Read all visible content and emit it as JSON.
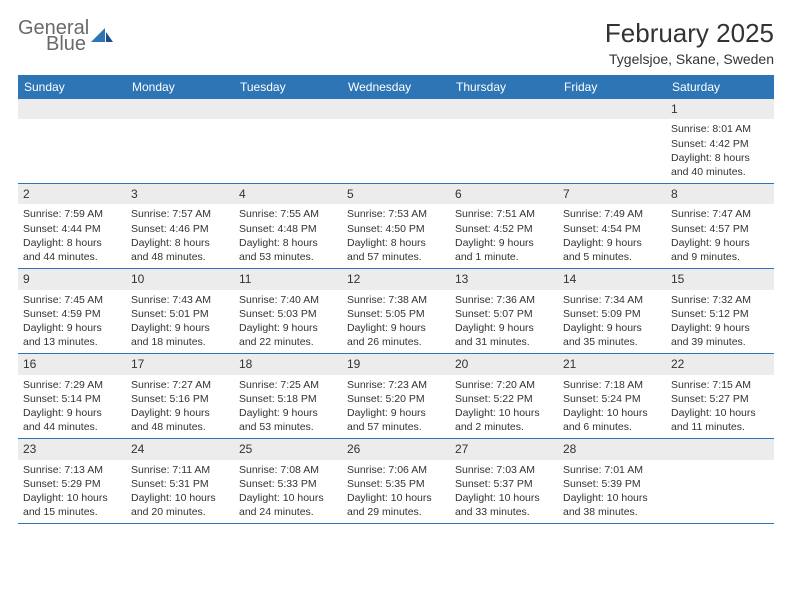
{
  "logo": {
    "line1": "General",
    "line2": "Blue"
  },
  "header": {
    "month_title": "February 2025",
    "location": "Tygelsjoe, Skane, Sweden"
  },
  "styling": {
    "header_bg": "#2e75b6",
    "daynum_bg": "#ececec",
    "page_bg": "#ffffff",
    "text_color": "#333333",
    "weekday_text": "#ffffff",
    "week_border": "#2e75b6",
    "logo_gray": "#6a6a6a",
    "logo_blue": "#2e75b6",
    "month_fontsize": 26,
    "location_fontsize": 14,
    "weekday_fontsize": 12,
    "daynum_fontsize": 12,
    "body_fontsize": 10.5
  },
  "weekdays": [
    "Sunday",
    "Monday",
    "Tuesday",
    "Wednesday",
    "Thursday",
    "Friday",
    "Saturday"
  ],
  "weeks": [
    [
      {
        "empty": true
      },
      {
        "empty": true
      },
      {
        "empty": true
      },
      {
        "empty": true
      },
      {
        "empty": true
      },
      {
        "empty": true
      },
      {
        "num": "1",
        "sunrise": "Sunrise: 8:01 AM",
        "sunset": "Sunset: 4:42 PM",
        "daylight": "Daylight: 8 hours and 40 minutes."
      }
    ],
    [
      {
        "num": "2",
        "sunrise": "Sunrise: 7:59 AM",
        "sunset": "Sunset: 4:44 PM",
        "daylight": "Daylight: 8 hours and 44 minutes."
      },
      {
        "num": "3",
        "sunrise": "Sunrise: 7:57 AM",
        "sunset": "Sunset: 4:46 PM",
        "daylight": "Daylight: 8 hours and 48 minutes."
      },
      {
        "num": "4",
        "sunrise": "Sunrise: 7:55 AM",
        "sunset": "Sunset: 4:48 PM",
        "daylight": "Daylight: 8 hours and 53 minutes."
      },
      {
        "num": "5",
        "sunrise": "Sunrise: 7:53 AM",
        "sunset": "Sunset: 4:50 PM",
        "daylight": "Daylight: 8 hours and 57 minutes."
      },
      {
        "num": "6",
        "sunrise": "Sunrise: 7:51 AM",
        "sunset": "Sunset: 4:52 PM",
        "daylight": "Daylight: 9 hours and 1 minute."
      },
      {
        "num": "7",
        "sunrise": "Sunrise: 7:49 AM",
        "sunset": "Sunset: 4:54 PM",
        "daylight": "Daylight: 9 hours and 5 minutes."
      },
      {
        "num": "8",
        "sunrise": "Sunrise: 7:47 AM",
        "sunset": "Sunset: 4:57 PM",
        "daylight": "Daylight: 9 hours and 9 minutes."
      }
    ],
    [
      {
        "num": "9",
        "sunrise": "Sunrise: 7:45 AM",
        "sunset": "Sunset: 4:59 PM",
        "daylight": "Daylight: 9 hours and 13 minutes."
      },
      {
        "num": "10",
        "sunrise": "Sunrise: 7:43 AM",
        "sunset": "Sunset: 5:01 PM",
        "daylight": "Daylight: 9 hours and 18 minutes."
      },
      {
        "num": "11",
        "sunrise": "Sunrise: 7:40 AM",
        "sunset": "Sunset: 5:03 PM",
        "daylight": "Daylight: 9 hours and 22 minutes."
      },
      {
        "num": "12",
        "sunrise": "Sunrise: 7:38 AM",
        "sunset": "Sunset: 5:05 PM",
        "daylight": "Daylight: 9 hours and 26 minutes."
      },
      {
        "num": "13",
        "sunrise": "Sunrise: 7:36 AM",
        "sunset": "Sunset: 5:07 PM",
        "daylight": "Daylight: 9 hours and 31 minutes."
      },
      {
        "num": "14",
        "sunrise": "Sunrise: 7:34 AM",
        "sunset": "Sunset: 5:09 PM",
        "daylight": "Daylight: 9 hours and 35 minutes."
      },
      {
        "num": "15",
        "sunrise": "Sunrise: 7:32 AM",
        "sunset": "Sunset: 5:12 PM",
        "daylight": "Daylight: 9 hours and 39 minutes."
      }
    ],
    [
      {
        "num": "16",
        "sunrise": "Sunrise: 7:29 AM",
        "sunset": "Sunset: 5:14 PM",
        "daylight": "Daylight: 9 hours and 44 minutes."
      },
      {
        "num": "17",
        "sunrise": "Sunrise: 7:27 AM",
        "sunset": "Sunset: 5:16 PM",
        "daylight": "Daylight: 9 hours and 48 minutes."
      },
      {
        "num": "18",
        "sunrise": "Sunrise: 7:25 AM",
        "sunset": "Sunset: 5:18 PM",
        "daylight": "Daylight: 9 hours and 53 minutes."
      },
      {
        "num": "19",
        "sunrise": "Sunrise: 7:23 AM",
        "sunset": "Sunset: 5:20 PM",
        "daylight": "Daylight: 9 hours and 57 minutes."
      },
      {
        "num": "20",
        "sunrise": "Sunrise: 7:20 AM",
        "sunset": "Sunset: 5:22 PM",
        "daylight": "Daylight: 10 hours and 2 minutes."
      },
      {
        "num": "21",
        "sunrise": "Sunrise: 7:18 AM",
        "sunset": "Sunset: 5:24 PM",
        "daylight": "Daylight: 10 hours and 6 minutes."
      },
      {
        "num": "22",
        "sunrise": "Sunrise: 7:15 AM",
        "sunset": "Sunset: 5:27 PM",
        "daylight": "Daylight: 10 hours and 11 minutes."
      }
    ],
    [
      {
        "num": "23",
        "sunrise": "Sunrise: 7:13 AM",
        "sunset": "Sunset: 5:29 PM",
        "daylight": "Daylight: 10 hours and 15 minutes."
      },
      {
        "num": "24",
        "sunrise": "Sunrise: 7:11 AM",
        "sunset": "Sunset: 5:31 PM",
        "daylight": "Daylight: 10 hours and 20 minutes."
      },
      {
        "num": "25",
        "sunrise": "Sunrise: 7:08 AM",
        "sunset": "Sunset: 5:33 PM",
        "daylight": "Daylight: 10 hours and 24 minutes."
      },
      {
        "num": "26",
        "sunrise": "Sunrise: 7:06 AM",
        "sunset": "Sunset: 5:35 PM",
        "daylight": "Daylight: 10 hours and 29 minutes."
      },
      {
        "num": "27",
        "sunrise": "Sunrise: 7:03 AM",
        "sunset": "Sunset: 5:37 PM",
        "daylight": "Daylight: 10 hours and 33 minutes."
      },
      {
        "num": "28",
        "sunrise": "Sunrise: 7:01 AM",
        "sunset": "Sunset: 5:39 PM",
        "daylight": "Daylight: 10 hours and 38 minutes."
      },
      {
        "empty": true
      }
    ]
  ]
}
